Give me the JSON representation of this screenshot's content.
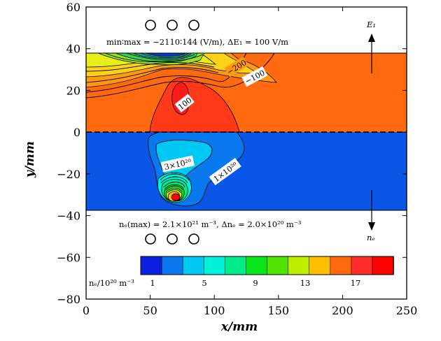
{
  "chart_data": {
    "type": "heatmap",
    "x_axis": {
      "label": "x/mm",
      "ticks": [
        0,
        50,
        100,
        150,
        200,
        250
      ],
      "range": [
        0,
        250
      ]
    },
    "y_axis": {
      "label": "y/mm",
      "ticks": [
        60,
        40,
        20,
        0,
        -20,
        -40,
        -60,
        -80
      ],
      "range": [
        -80,
        60
      ]
    },
    "regions": [
      {
        "name": "upper-field-region",
        "y_range": [
          0,
          38
        ],
        "color": "#ff6a10"
      },
      {
        "name": "lower-density-region",
        "y_range": [
          -38,
          0
        ],
        "color": "#0a56e6"
      }
    ],
    "annotations": {
      "field_range": "min∶max = −2110∶144 (V/m), ΔE₁ = 100 V/m",
      "density_range": "nₑ(max) = 2.1×10²¹ m⁻³, Δnₑ = 2.0×10²⁰ m⁻³",
      "field_arrow_label": "E₁",
      "density_arrow_label": "nₑ"
    },
    "contour_labels": [
      {
        "text": "−200"
      },
      {
        "text": "−100"
      },
      {
        "text": "100"
      },
      {
        "text": "3×10²⁰"
      },
      {
        "text": "1×10²⁰"
      }
    ],
    "colorbar": {
      "label": "nₑ/10²⁰ m⁻³",
      "tick_labels": [
        "1",
        "5",
        "9",
        "13",
        "17"
      ],
      "colors": [
        "#0a1fe0",
        "#0a78ee",
        "#00c8f4",
        "#00f2d8",
        "#00ec8a",
        "#0ae41c",
        "#52e400",
        "#bdf000",
        "#ffbe00",
        "#ff6a10",
        "#ff2c2c",
        "#ff0000"
      ]
    }
  }
}
